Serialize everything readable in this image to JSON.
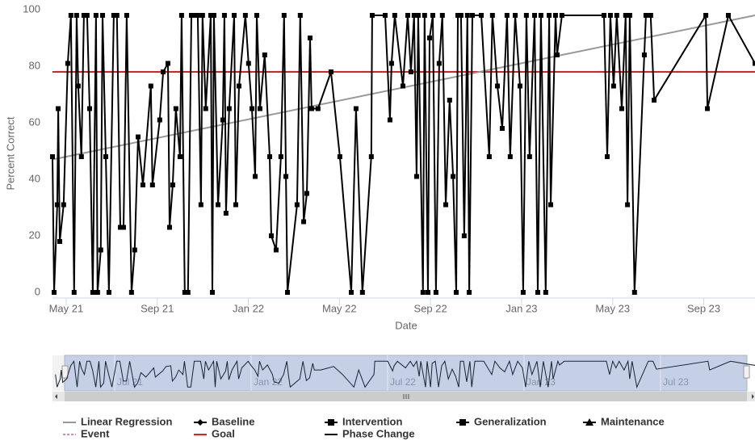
{
  "chart_data": {
    "type": "line",
    "y_axis_title": "Percent Correct",
    "x_axis_title": "Date",
    "xlim": [
      -0.6,
      30.25
    ],
    "xticks": [
      {
        "value": 0,
        "label": "May 21"
      },
      {
        "value": 4,
        "label": "Sep 21"
      },
      {
        "value": 8,
        "label": "Jan 22"
      },
      {
        "value": 12,
        "label": "May 22"
      },
      {
        "value": 16,
        "label": "Sep 22"
      },
      {
        "value": 20,
        "label": "Jan 23"
      },
      {
        "value": 24,
        "label": "May 23"
      },
      {
        "value": 28,
        "label": "Sep 23"
      }
    ],
    "ylim": [
      -2,
      102
    ],
    "yticks": [
      0,
      20,
      40,
      60,
      80,
      100
    ],
    "x": [
      -0.6,
      -0.53,
      -0.39,
      -0.35,
      -0.28,
      -0.11,
      0.07,
      0.21,
      0.35,
      0.46,
      0.53,
      0.67,
      0.78,
      0.92,
      1.03,
      1.17,
      1.31,
      1.38,
      1.52,
      1.6,
      1.74,
      1.88,
      2.09,
      2.23,
      2.38,
      2.52,
      2.66,
      2.87,
      3.01,
      3.16,
      3.37,
      3.72,
      3.79,
      4.11,
      4.26,
      4.47,
      4.54,
      4.68,
      4.82,
      5.0,
      5.07,
      5.21,
      5.35,
      5.5,
      5.64,
      5.78,
      5.92,
      5.99,
      6.13,
      6.35,
      6.42,
      6.49,
      6.67,
      6.88,
      6.95,
      7.02,
      7.16,
      7.38,
      7.45,
      7.59,
      7.87,
      8.01,
      8.16,
      8.3,
      8.37,
      8.51,
      8.72,
      8.94,
      9.01,
      9.22,
      9.43,
      9.57,
      9.65,
      9.72,
      10.14,
      10.28,
      10.43,
      10.57,
      10.71,
      10.78,
      11.06,
      11.63,
      12.02,
      12.52,
      12.73,
      13.01,
      13.4,
      13.44,
      14.01,
      14.22,
      14.29,
      14.43,
      14.79,
      15.0,
      15.14,
      15.28,
      15.39,
      15.46,
      15.67,
      15.74,
      15.89,
      15.96,
      16.1,
      16.24,
      16.38,
      16.52,
      16.67,
      16.84,
      16.99,
      17.13,
      17.2,
      17.34,
      17.48,
      17.62,
      17.7,
      17.84,
      18.23,
      18.58,
      18.72,
      18.94,
      19.15,
      19.36,
      19.5,
      19.72,
      19.93,
      20.07,
      20.21,
      20.35,
      20.57,
      20.71,
      20.85,
      21.06,
      21.21,
      21.28,
      21.49,
      21.56,
      21.77,
      23.62,
      23.76,
      23.9,
      24.04,
      24.18,
      24.4,
      24.57,
      24.65,
      24.75,
      24.96,
      25.39,
      25.46,
      25.67,
      25.82,
      28.09,
      28.16,
      29.08,
      30.25
    ],
    "values": [
      48,
      0,
      31,
      65,
      18,
      31,
      81,
      98,
      0,
      98,
      73,
      48,
      98,
      98,
      65,
      0,
      98,
      0,
      15,
      98,
      48,
      0,
      98,
      98,
      23,
      23,
      98,
      0,
      15,
      55,
      38,
      73,
      38,
      61,
      78,
      81,
      23,
      38,
      65,
      48,
      98,
      0,
      0,
      98,
      98,
      98,
      31,
      98,
      65,
      98,
      0,
      98,
      31,
      61,
      98,
      28,
      65,
      98,
      31,
      73,
      98,
      81,
      65,
      41,
      98,
      65,
      84,
      48,
      20,
      15,
      48,
      98,
      41,
      0,
      31,
      98,
      25,
      35,
      90,
      65,
      65,
      78,
      48,
      0,
      65,
      0,
      48,
      98,
      98,
      61,
      81,
      98,
      73,
      98,
      78,
      98,
      41,
      98,
      0,
      98,
      0,
      90,
      98,
      0,
      81,
      98,
      31,
      68,
      41,
      0,
      98,
      98,
      20,
      98,
      0,
      98,
      98,
      48,
      98,
      73,
      58,
      98,
      48,
      98,
      73,
      0,
      98,
      48,
      98,
      0,
      98,
      0,
      98,
      31,
      98,
      84,
      98,
      98,
      48,
      98,
      73,
      98,
      65,
      98,
      31,
      98,
      0,
      84,
      98,
      98,
      68,
      98,
      65,
      98,
      81
    ],
    "color": "#000000",
    "regression": {
      "x": [
        -0.6,
        30.25
      ],
      "values": [
        47,
        98
      ],
      "color": "#999999"
    },
    "goal": {
      "value": 78,
      "color": "#e0201f"
    },
    "legend": [
      {
        "name": "Linear Regression",
        "color": "#999999",
        "symbol": "line"
      },
      {
        "name": "Baseline",
        "color": "#000000",
        "symbol": "diamond"
      },
      {
        "name": "Intervention",
        "color": "#000000",
        "symbol": "square"
      },
      {
        "name": "Generalization",
        "color": "#000000",
        "symbol": "square"
      },
      {
        "name": "Maintenance",
        "color": "#000000",
        "symbol": "triangle"
      },
      {
        "name": "Event",
        "color": "#8b1a8b",
        "symbol": "dashed"
      },
      {
        "name": "Goal",
        "color": "#e0201f",
        "symbol": "line"
      },
      {
        "name": "Phase Change",
        "color": "#000000",
        "symbol": "line"
      }
    ],
    "navigator": {
      "xlim": [
        -0.2,
        29.8
      ],
      "xticks": [
        {
          "value": 2,
          "label": "Jul 21"
        },
        {
          "value": 8,
          "label": "Jan 22"
        },
        {
          "value": 14,
          "label": "Jul 22"
        },
        {
          "value": 20,
          "label": "Jan 23"
        },
        {
          "value": 26,
          "label": "Jul 23"
        }
      ]
    }
  }
}
